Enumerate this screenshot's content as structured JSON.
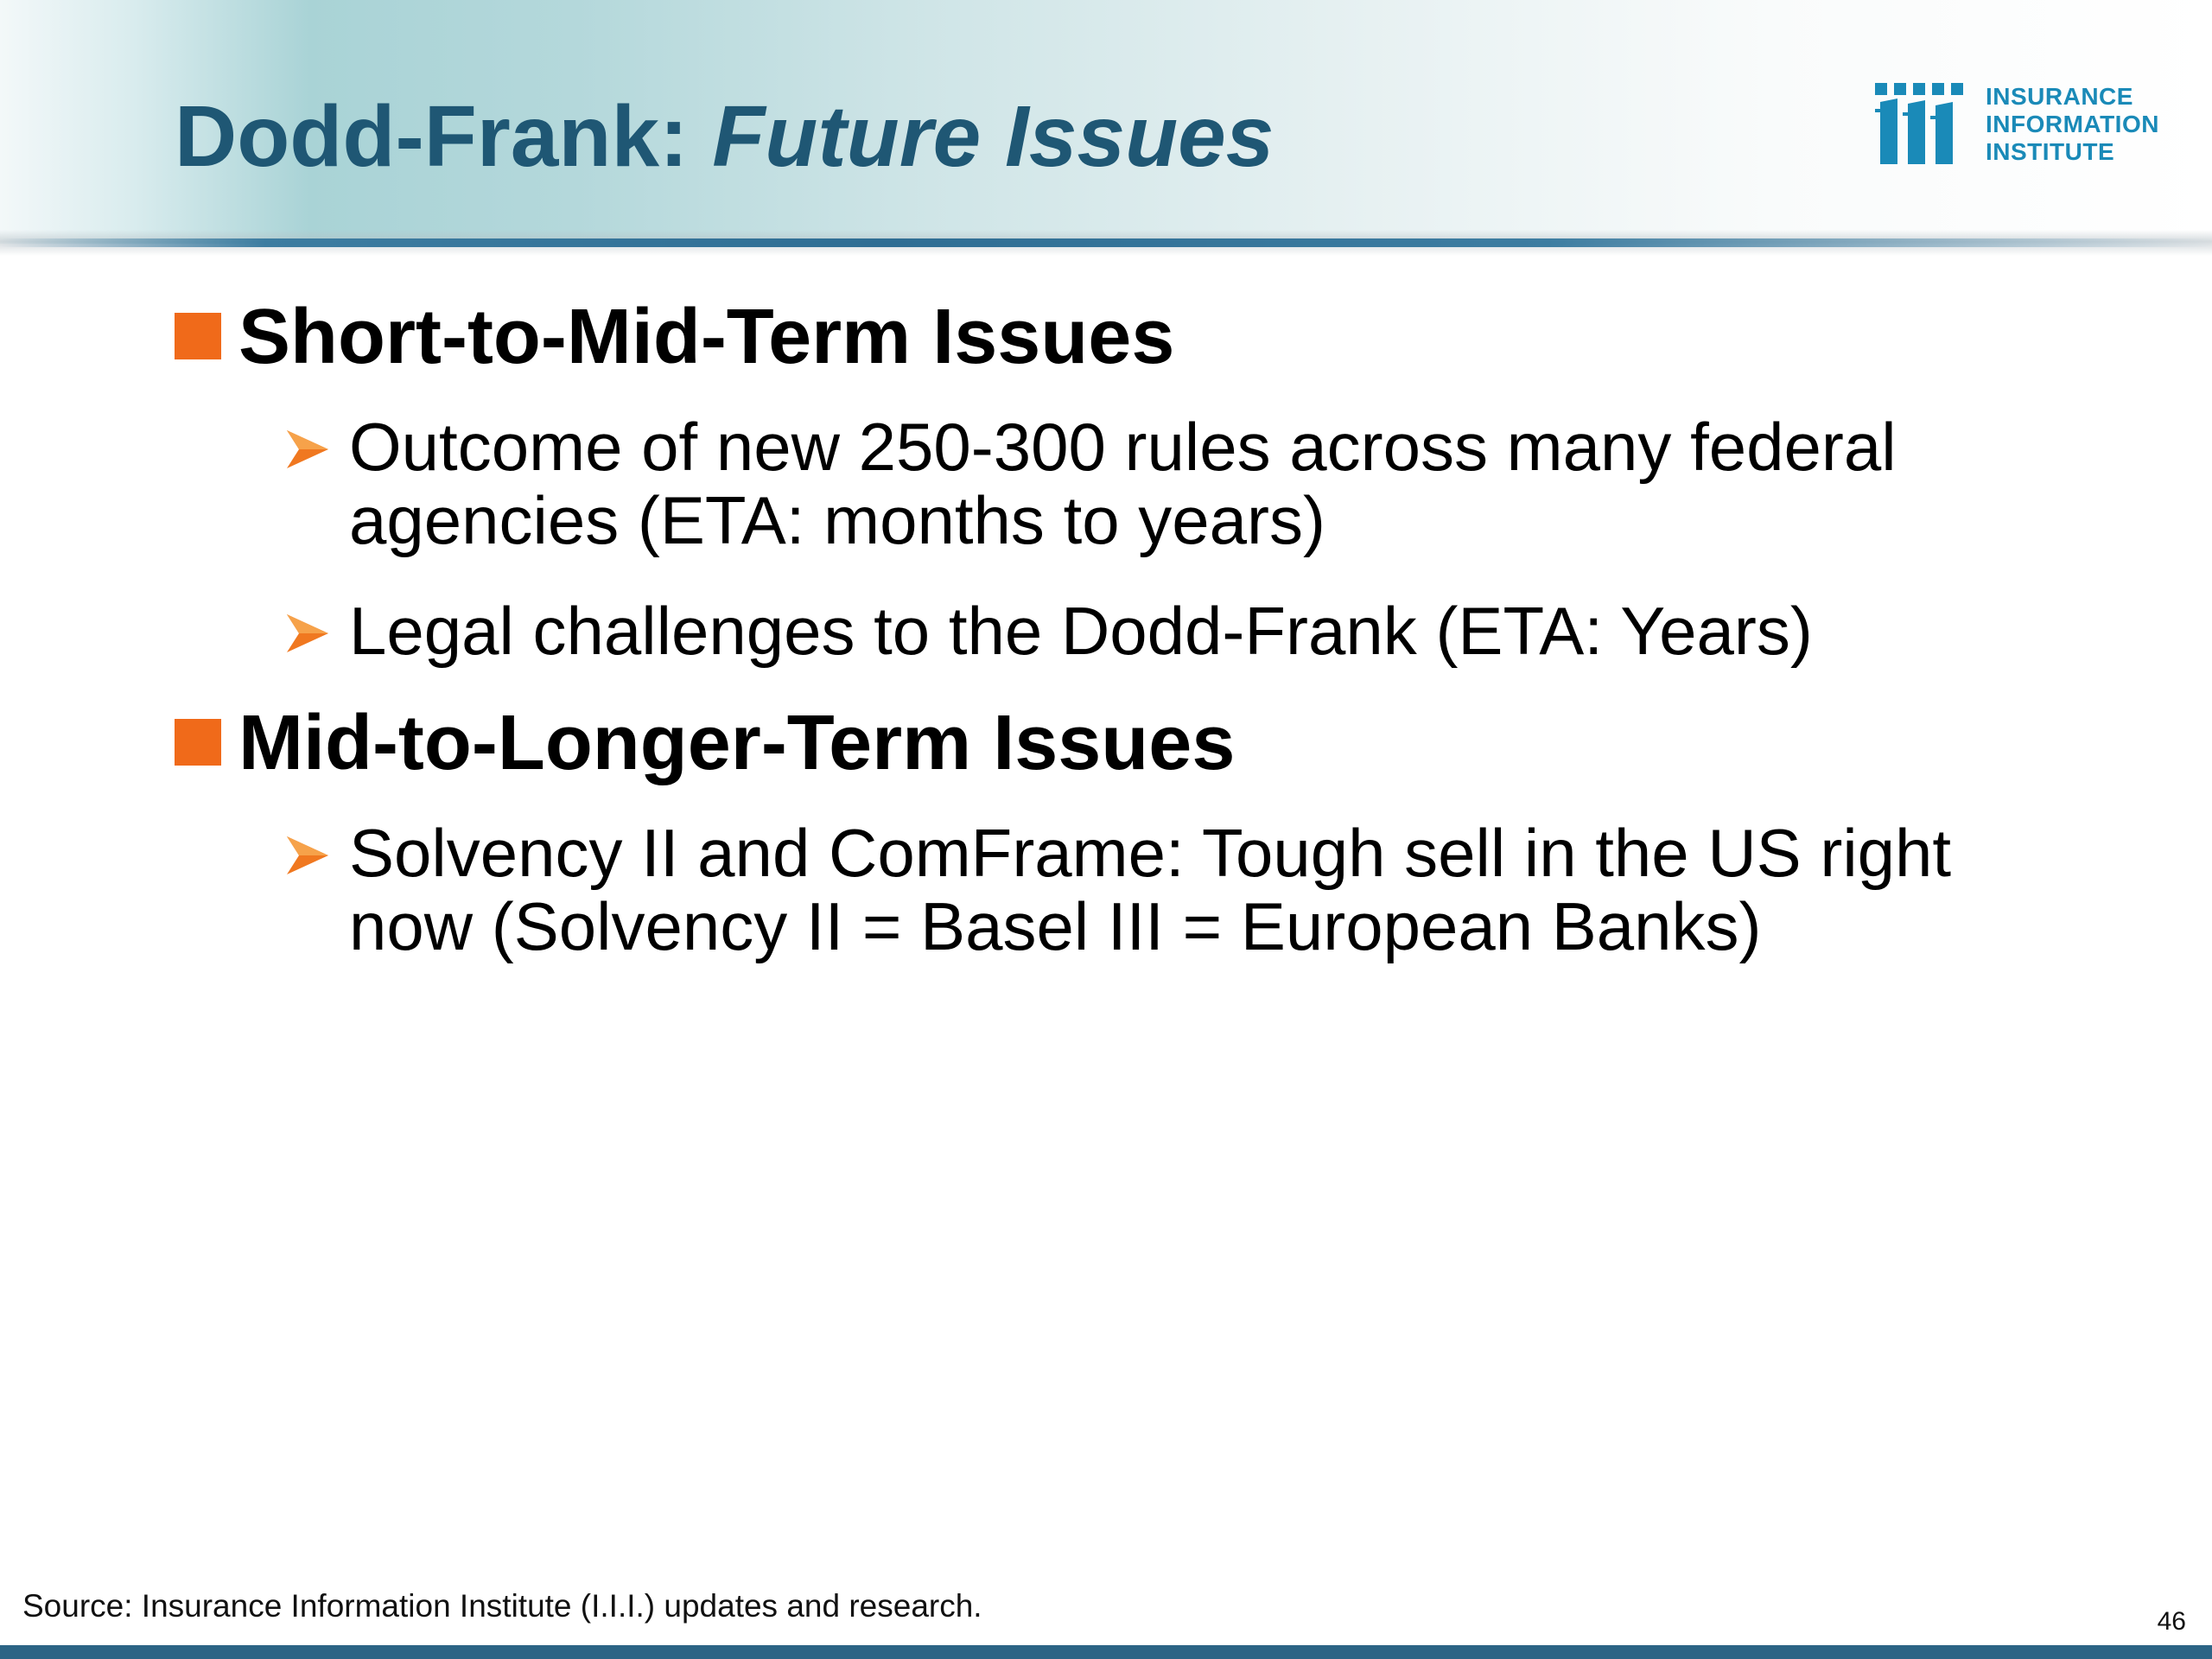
{
  "slide": {
    "title_main": "Dodd-Frank:",
    "title_italic": "Future Issues",
    "logo": {
      "icon": "iii-logo-icon",
      "lines": [
        "INSURANCE",
        "INFORMATION",
        "INSTITUTE"
      ]
    },
    "sections": [
      {
        "heading": "Short-to-Mid-Term Issues",
        "bullets": [
          "Outcome of new 250-300 rules across many federal agencies (ETA: months to years)",
          "Legal challenges to the Dodd-Frank (ETA: Years)"
        ]
      },
      {
        "heading": "Mid-to-Longer-Term Issues",
        "bullets": [
          "Solvency II and ComFrame:  Tough sell in the US right now (Solvency II = Basel III = European Banks)"
        ]
      }
    ],
    "source": "Source: Insurance Information Institute (I.I.I.) updates and research.",
    "page_number": "46",
    "colors": {
      "title": "#1f5774",
      "bullet_square": "#f06a1a",
      "arrow": "#f07820",
      "logo": "#1a8ab8",
      "bottom_bar": "#2c6485"
    }
  }
}
